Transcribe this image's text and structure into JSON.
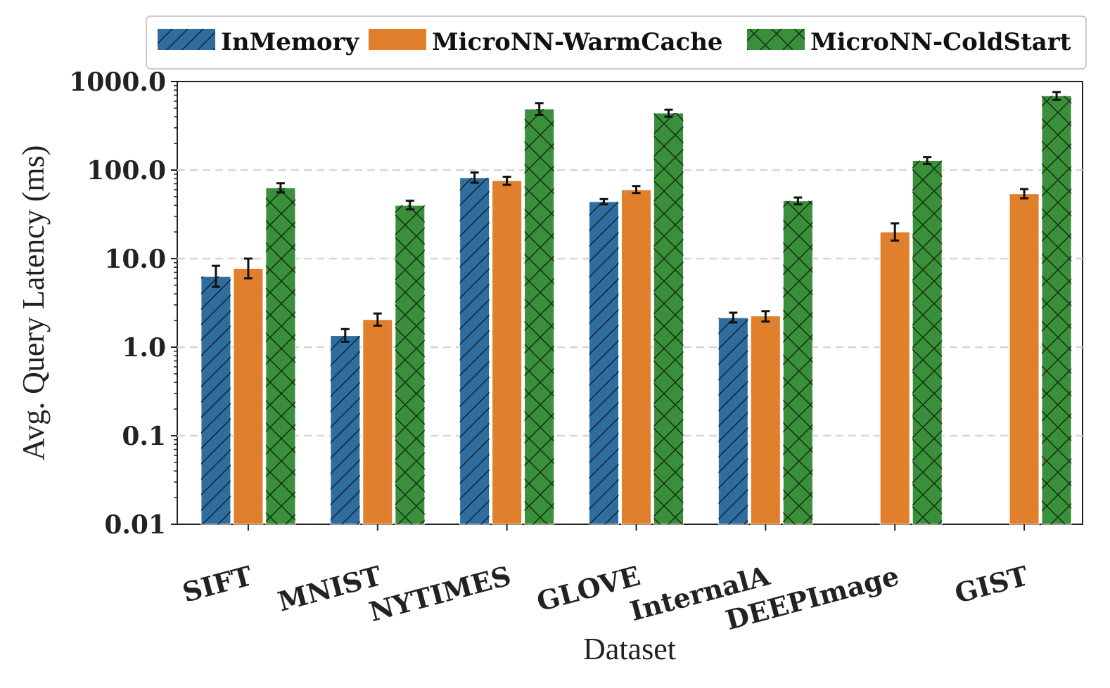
{
  "chart_data": {
    "type": "bar",
    "scale": "log",
    "title": "",
    "xlabel": "Dataset",
    "ylabel": "Avg. Query Latency (ms)",
    "ylim": [
      0.01,
      1000
    ],
    "y_ticks": [
      {
        "value": 0.01,
        "label": "0.01"
      },
      {
        "value": 0.1,
        "label": "0.1"
      },
      {
        "value": 1,
        "label": "1.0"
      },
      {
        "value": 10,
        "label": "10.0"
      },
      {
        "value": 100,
        "label": "100.0"
      },
      {
        "value": 1000,
        "label": "1000.0"
      }
    ],
    "grid": "horizontal dashed",
    "legend_position": "top",
    "categories": [
      "SIFT",
      "MNIST",
      "NYTIMES",
      "GLOVE",
      "InternalA",
      "DEEPImage",
      "GIST"
    ],
    "series": [
      {
        "name": "InMemory",
        "color": "#2e6d9e",
        "hatch": "diagonal",
        "values": [
          6.3,
          1.35,
          82,
          44,
          2.15,
          null,
          null
        ],
        "err_low": [
          4.8,
          1.15,
          72,
          41,
          1.9,
          null,
          null
        ],
        "err_high": [
          8.3,
          1.6,
          94,
          47,
          2.45,
          null,
          null
        ]
      },
      {
        "name": "MicroNN-WarmCache",
        "color": "#e07f2c",
        "hatch": "none",
        "values": [
          7.7,
          2.05,
          76,
          60,
          2.25,
          20,
          54
        ],
        "err_low": [
          6.0,
          1.75,
          68,
          55,
          1.95,
          16,
          48
        ],
        "err_high": [
          10.0,
          2.4,
          84,
          66,
          2.55,
          25,
          61
        ]
      },
      {
        "name": "MicroNN-ColdStart",
        "color": "#3a8f3a",
        "hatch": "crosshatch",
        "values": [
          63,
          40,
          490,
          440,
          45,
          null,
          690
        ],
        "err_low": [
          56,
          36,
          420,
          400,
          41,
          null,
          620
        ],
        "err_high": [
          71,
          45,
          570,
          480,
          49,
          null,
          760
        ]
      }
    ],
    "extra_bars": [
      {
        "category": "DEEPImage",
        "series": "MicroNN-ColdStart",
        "value": 128,
        "err_low": 117,
        "err_high": 140
      }
    ]
  }
}
